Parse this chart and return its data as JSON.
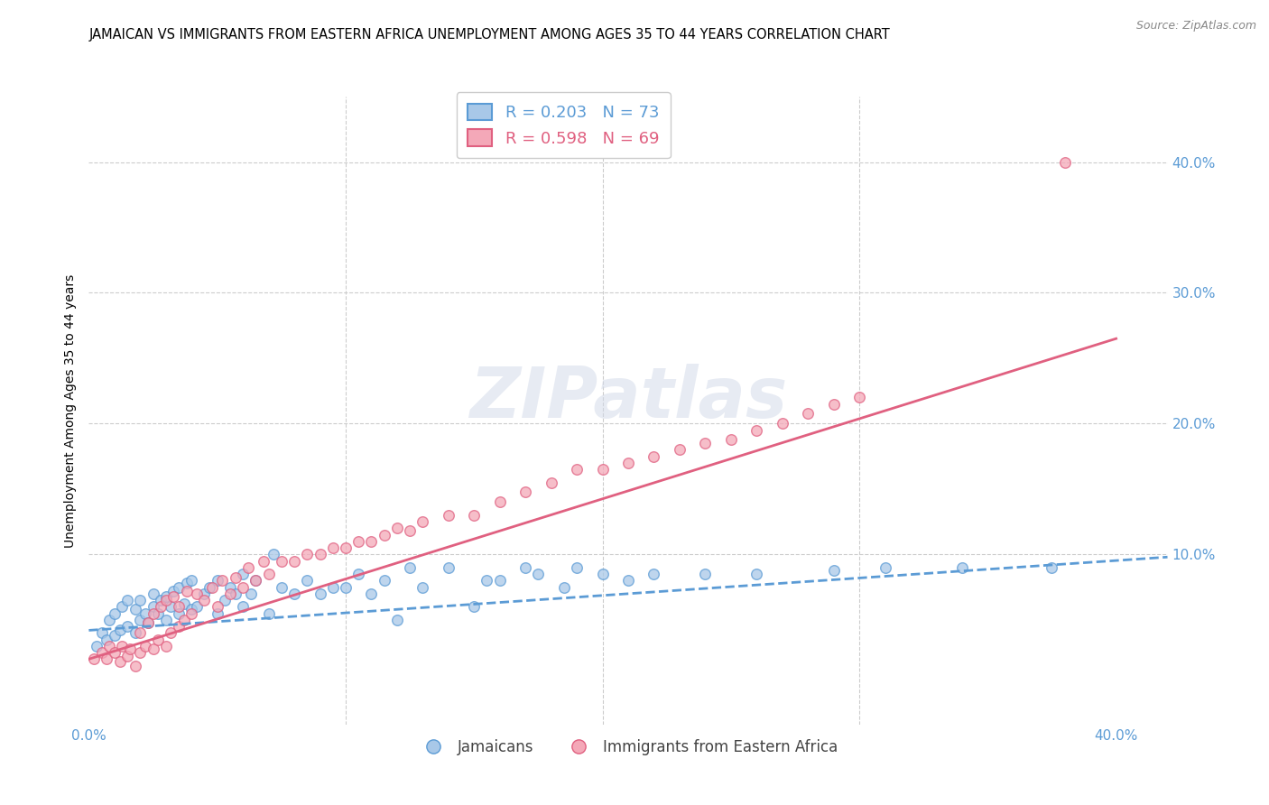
{
  "title": "JAMAICAN VS IMMIGRANTS FROM EASTERN AFRICA UNEMPLOYMENT AMONG AGES 35 TO 44 YEARS CORRELATION CHART",
  "source": "Source: ZipAtlas.com",
  "ylabel": "Unemployment Among Ages 35 to 44 years",
  "xlim": [
    0.0,
    0.42
  ],
  "ylim": [
    -0.03,
    0.45
  ],
  "yticks_right": [
    0.1,
    0.2,
    0.3,
    0.4
  ],
  "ytick_labels_right": [
    "10.0%",
    "20.0%",
    "30.0%",
    "40.0%"
  ],
  "xtick_positions": [
    0.0,
    0.1,
    0.2,
    0.3,
    0.4
  ],
  "xtick_labels": [
    "0.0%",
    "",
    "",
    "",
    "40.0%"
  ],
  "grid_color": "#cccccc",
  "background_color": "#ffffff",
  "watermark": "ZIPatlas",
  "legend_R_blue": "R = 0.203",
  "legend_N_blue": "N = 73",
  "legend_R_pink": "R = 0.598",
  "legend_N_pink": "N = 69",
  "legend_label_blue": "Jamaicans",
  "legend_label_pink": "Immigrants from Eastern Africa",
  "blue_color": "#a8c8e8",
  "pink_color": "#f4a8b8",
  "trendline_blue_color": "#5b9bd5",
  "trendline_pink_color": "#e06080",
  "blue_scatter_x": [
    0.003,
    0.005,
    0.007,
    0.008,
    0.01,
    0.01,
    0.012,
    0.013,
    0.015,
    0.015,
    0.018,
    0.018,
    0.02,
    0.02,
    0.022,
    0.023,
    0.025,
    0.025,
    0.027,
    0.028,
    0.03,
    0.03,
    0.032,
    0.033,
    0.035,
    0.035,
    0.037,
    0.038,
    0.04,
    0.04,
    0.042,
    0.045,
    0.047,
    0.05,
    0.05,
    0.053,
    0.055,
    0.057,
    0.06,
    0.06,
    0.063,
    0.065,
    0.07,
    0.072,
    0.075,
    0.08,
    0.085,
    0.09,
    0.095,
    0.1,
    0.105,
    0.11,
    0.115,
    0.12,
    0.125,
    0.13,
    0.14,
    0.15,
    0.155,
    0.16,
    0.17,
    0.175,
    0.185,
    0.19,
    0.2,
    0.21,
    0.22,
    0.24,
    0.26,
    0.29,
    0.31,
    0.34,
    0.375
  ],
  "blue_scatter_y": [
    0.03,
    0.04,
    0.035,
    0.05,
    0.038,
    0.055,
    0.042,
    0.06,
    0.045,
    0.065,
    0.04,
    0.058,
    0.05,
    0.065,
    0.055,
    0.048,
    0.06,
    0.07,
    0.055,
    0.065,
    0.05,
    0.068,
    0.06,
    0.072,
    0.055,
    0.075,
    0.062,
    0.078,
    0.058,
    0.08,
    0.06,
    0.07,
    0.075,
    0.055,
    0.08,
    0.065,
    0.075,
    0.07,
    0.06,
    0.085,
    0.07,
    0.08,
    0.055,
    0.1,
    0.075,
    0.07,
    0.08,
    0.07,
    0.075,
    0.075,
    0.085,
    0.07,
    0.08,
    0.05,
    0.09,
    0.075,
    0.09,
    0.06,
    0.08,
    0.08,
    0.09,
    0.085,
    0.075,
    0.09,
    0.085,
    0.08,
    0.085,
    0.085,
    0.085,
    0.088,
    0.09,
    0.09,
    0.09
  ],
  "pink_scatter_x": [
    0.002,
    0.005,
    0.007,
    0.008,
    0.01,
    0.012,
    0.013,
    0.015,
    0.016,
    0.018,
    0.02,
    0.02,
    0.022,
    0.023,
    0.025,
    0.025,
    0.027,
    0.028,
    0.03,
    0.03,
    0.032,
    0.033,
    0.035,
    0.035,
    0.037,
    0.038,
    0.04,
    0.042,
    0.045,
    0.048,
    0.05,
    0.052,
    0.055,
    0.057,
    0.06,
    0.062,
    0.065,
    0.068,
    0.07,
    0.075,
    0.08,
    0.085,
    0.09,
    0.095,
    0.1,
    0.105,
    0.11,
    0.115,
    0.12,
    0.125,
    0.13,
    0.14,
    0.15,
    0.16,
    0.17,
    0.18,
    0.19,
    0.2,
    0.21,
    0.22,
    0.23,
    0.24,
    0.25,
    0.26,
    0.27,
    0.28,
    0.29,
    0.3,
    0.38
  ],
  "pink_scatter_y": [
    0.02,
    0.025,
    0.02,
    0.03,
    0.025,
    0.018,
    0.03,
    0.022,
    0.028,
    0.015,
    0.025,
    0.04,
    0.03,
    0.048,
    0.028,
    0.055,
    0.035,
    0.06,
    0.03,
    0.065,
    0.04,
    0.068,
    0.045,
    0.06,
    0.05,
    0.072,
    0.055,
    0.07,
    0.065,
    0.075,
    0.06,
    0.08,
    0.07,
    0.082,
    0.075,
    0.09,
    0.08,
    0.095,
    0.085,
    0.095,
    0.095,
    0.1,
    0.1,
    0.105,
    0.105,
    0.11,
    0.11,
    0.115,
    0.12,
    0.118,
    0.125,
    0.13,
    0.13,
    0.14,
    0.148,
    0.155,
    0.165,
    0.165,
    0.17,
    0.175,
    0.18,
    0.185,
    0.188,
    0.195,
    0.2,
    0.208,
    0.215,
    0.22,
    0.4
  ],
  "blue_trend_x": [
    0.0,
    0.42
  ],
  "blue_trend_y": [
    0.042,
    0.098
  ],
  "pink_trend_x": [
    0.0,
    0.4
  ],
  "pink_trend_y": [
    0.02,
    0.265
  ],
  "title_fontsize": 10.5,
  "axis_label_fontsize": 10,
  "tick_fontsize": 11,
  "legend_fontsize": 13
}
